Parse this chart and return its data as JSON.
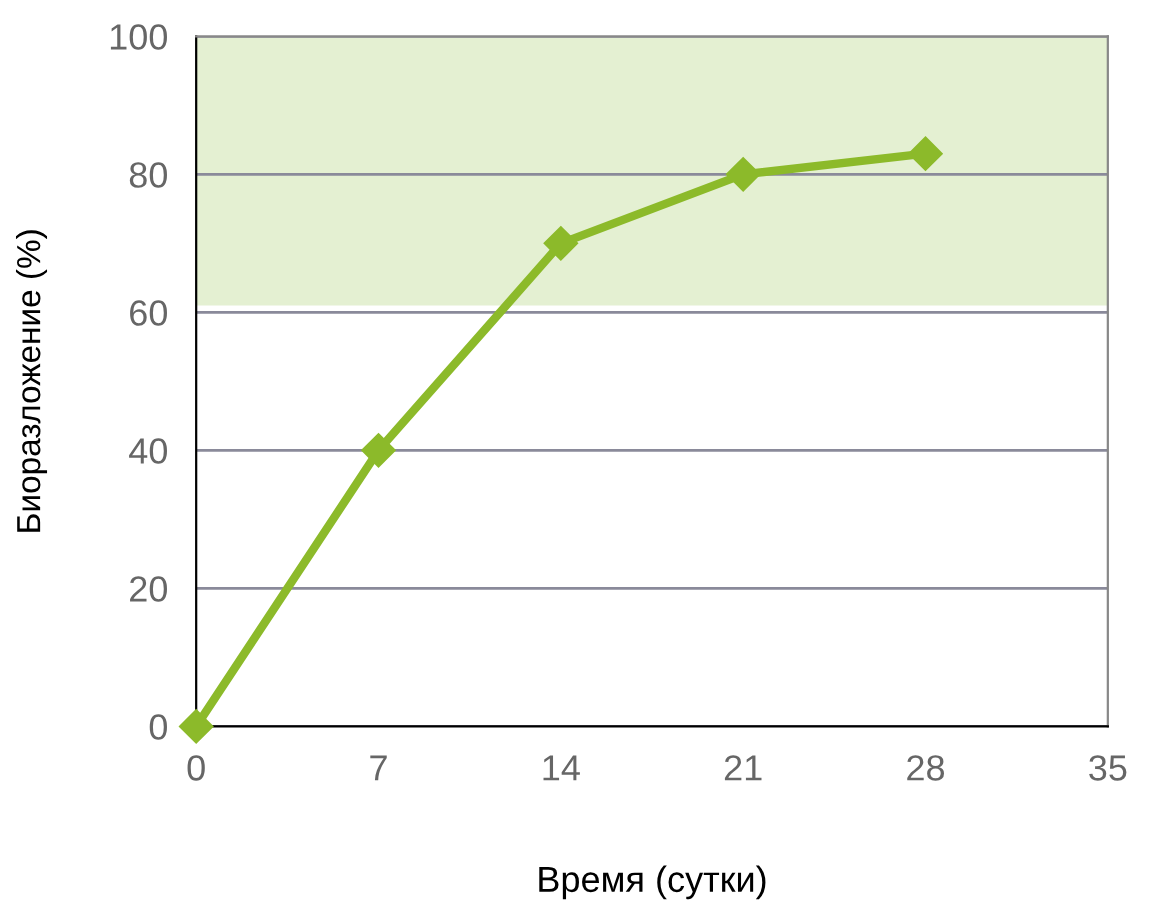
{
  "chart_data": {
    "type": "line",
    "xlabel": "Время (сутки)",
    "ylabel": "Биоразложение (%)",
    "x": [
      0,
      7,
      14,
      21,
      28
    ],
    "series": [
      {
        "color": "#8cba2a",
        "values": [
          0,
          40,
          70,
          80,
          83
        ]
      }
    ],
    "xlim": [
      0,
      35
    ],
    "xticks": [
      0,
      7,
      14,
      21,
      28,
      35
    ],
    "ylim": [
      0,
      100
    ],
    "yticks": [
      0,
      20,
      40,
      60,
      80,
      100
    ],
    "bands": [
      {
        "axis": "y",
        "from": 61,
        "to": 100,
        "color": "#e4f0d2"
      }
    ],
    "grid": "y",
    "marker": "diamond",
    "line_style": "solid"
  }
}
